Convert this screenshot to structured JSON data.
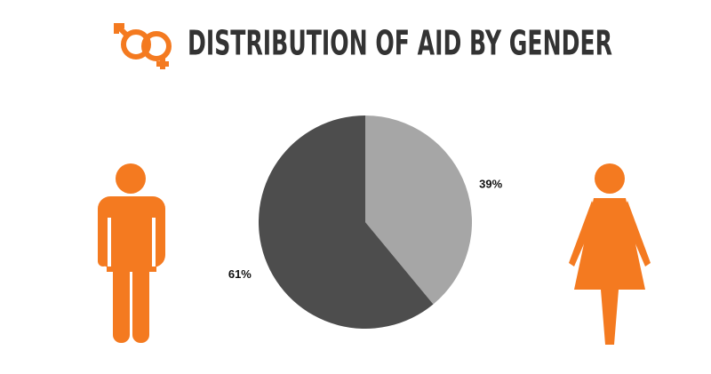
{
  "chart_data": {
    "type": "pie",
    "title": "DISTRIBUTION OF AID BY GENDER",
    "categories": [
      null,
      null
    ],
    "values": [
      39,
      61
    ],
    "value_labels": [
      "39%",
      "61%"
    ],
    "colors": [
      "#a6a6a6",
      "#4d4d4d"
    ]
  }
}
